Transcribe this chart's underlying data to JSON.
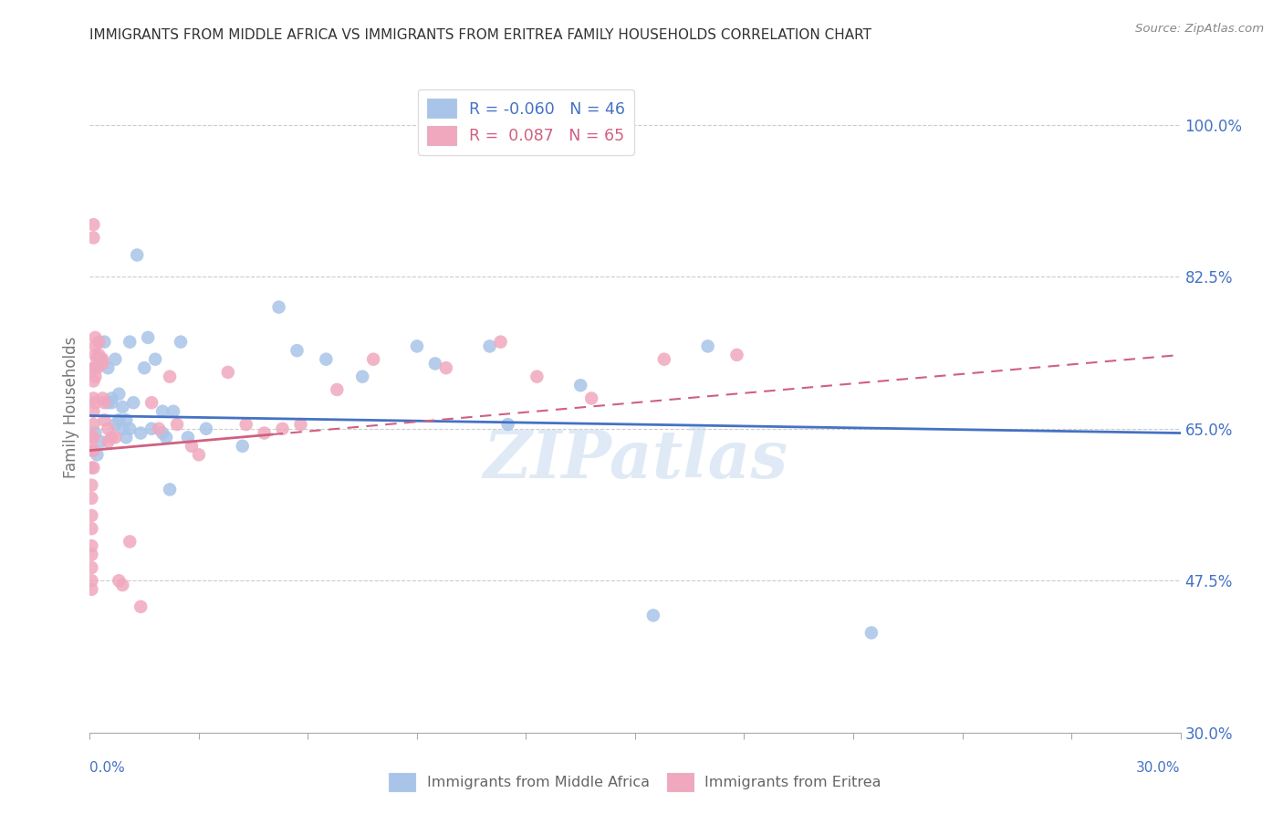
{
  "title": "IMMIGRANTS FROM MIDDLE AFRICA VS IMMIGRANTS FROM ERITREA FAMILY HOUSEHOLDS CORRELATION CHART",
  "source": "Source: ZipAtlas.com",
  "ylabel": "Family Households",
  "yticks": [
    30.0,
    47.5,
    65.0,
    82.5,
    100.0
  ],
  "ytick_labels": [
    "30.0%",
    "47.5%",
    "65.0%",
    "82.5%",
    "100.0%"
  ],
  "xmin": 0.0,
  "xmax": 30.0,
  "ymin": 30.0,
  "ymax": 105.0,
  "legend_blue_r": "-0.060",
  "legend_blue_n": "46",
  "legend_pink_r": "0.087",
  "legend_pink_n": "65",
  "blue_color": "#a8c4e8",
  "pink_color": "#f0a8be",
  "blue_line_color": "#4472c4",
  "pink_line_color": "#d06080",
  "watermark": "ZIPatlas",
  "blue_dots": [
    [
      0.15,
      64.5
    ],
    [
      0.2,
      62.0
    ],
    [
      0.4,
      75.0
    ],
    [
      0.5,
      68.0
    ],
    [
      0.5,
      72.0
    ],
    [
      0.6,
      68.5
    ],
    [
      0.6,
      68.0
    ],
    [
      0.7,
      65.5
    ],
    [
      0.7,
      73.0
    ],
    [
      0.8,
      66.0
    ],
    [
      0.8,
      69.0
    ],
    [
      0.9,
      65.0
    ],
    [
      0.9,
      67.5
    ],
    [
      1.0,
      64.0
    ],
    [
      1.0,
      66.0
    ],
    [
      1.1,
      75.0
    ],
    [
      1.1,
      65.0
    ],
    [
      1.2,
      68.0
    ],
    [
      1.3,
      85.0
    ],
    [
      1.4,
      64.5
    ],
    [
      1.5,
      72.0
    ],
    [
      1.6,
      75.5
    ],
    [
      1.7,
      65.0
    ],
    [
      1.8,
      73.0
    ],
    [
      2.0,
      67.0
    ],
    [
      2.0,
      64.5
    ],
    [
      2.1,
      64.0
    ],
    [
      2.2,
      58.0
    ],
    [
      2.3,
      67.0
    ],
    [
      2.5,
      75.0
    ],
    [
      2.7,
      64.0
    ],
    [
      3.2,
      65.0
    ],
    [
      4.2,
      63.0
    ],
    [
      5.2,
      79.0
    ],
    [
      5.7,
      74.0
    ],
    [
      6.5,
      73.0
    ],
    [
      7.5,
      71.0
    ],
    [
      9.0,
      74.5
    ],
    [
      9.5,
      72.5
    ],
    [
      11.0,
      74.5
    ],
    [
      11.5,
      65.5
    ],
    [
      13.5,
      70.0
    ],
    [
      15.5,
      43.5
    ],
    [
      17.0,
      74.5
    ],
    [
      21.5,
      41.5
    ],
    [
      0.3,
      63.5
    ]
  ],
  "pink_dots": [
    [
      0.05,
      64.0
    ],
    [
      0.05,
      62.5
    ],
    [
      0.05,
      60.5
    ],
    [
      0.05,
      58.5
    ],
    [
      0.05,
      57.0
    ],
    [
      0.05,
      55.0
    ],
    [
      0.05,
      53.5
    ],
    [
      0.05,
      51.5
    ],
    [
      0.05,
      50.5
    ],
    [
      0.05,
      49.0
    ],
    [
      0.05,
      47.5
    ],
    [
      0.05,
      46.5
    ],
    [
      0.1,
      88.5
    ],
    [
      0.1,
      87.0
    ],
    [
      0.1,
      72.0
    ],
    [
      0.1,
      70.5
    ],
    [
      0.1,
      68.5
    ],
    [
      0.1,
      67.0
    ],
    [
      0.1,
      65.5
    ],
    [
      0.1,
      64.0
    ],
    [
      0.1,
      62.5
    ],
    [
      0.1,
      60.5
    ],
    [
      0.15,
      75.5
    ],
    [
      0.15,
      74.5
    ],
    [
      0.15,
      73.5
    ],
    [
      0.15,
      72.0
    ],
    [
      0.15,
      71.0
    ],
    [
      0.15,
      68.0
    ],
    [
      0.2,
      73.0
    ],
    [
      0.2,
      72.0
    ],
    [
      0.25,
      75.0
    ],
    [
      0.25,
      73.5
    ],
    [
      0.3,
      73.0
    ],
    [
      0.35,
      73.0
    ],
    [
      0.35,
      72.5
    ],
    [
      0.35,
      68.5
    ],
    [
      0.4,
      68.0
    ],
    [
      0.4,
      66.0
    ],
    [
      0.5,
      65.0
    ],
    [
      0.5,
      63.5
    ],
    [
      0.6,
      64.0
    ],
    [
      0.7,
      64.0
    ],
    [
      0.8,
      47.5
    ],
    [
      0.9,
      47.0
    ],
    [
      1.1,
      52.0
    ],
    [
      1.4,
      44.5
    ],
    [
      1.7,
      68.0
    ],
    [
      1.9,
      65.0
    ],
    [
      2.2,
      71.0
    ],
    [
      2.4,
      65.5
    ],
    [
      2.8,
      63.0
    ],
    [
      3.0,
      62.0
    ],
    [
      3.8,
      71.5
    ],
    [
      4.3,
      65.5
    ],
    [
      4.8,
      64.5
    ],
    [
      5.3,
      65.0
    ],
    [
      5.8,
      65.5
    ],
    [
      6.8,
      69.5
    ],
    [
      7.8,
      73.0
    ],
    [
      9.8,
      72.0
    ],
    [
      11.3,
      75.0
    ],
    [
      12.3,
      71.0
    ],
    [
      13.8,
      68.5
    ],
    [
      15.8,
      73.0
    ],
    [
      17.8,
      73.5
    ]
  ]
}
